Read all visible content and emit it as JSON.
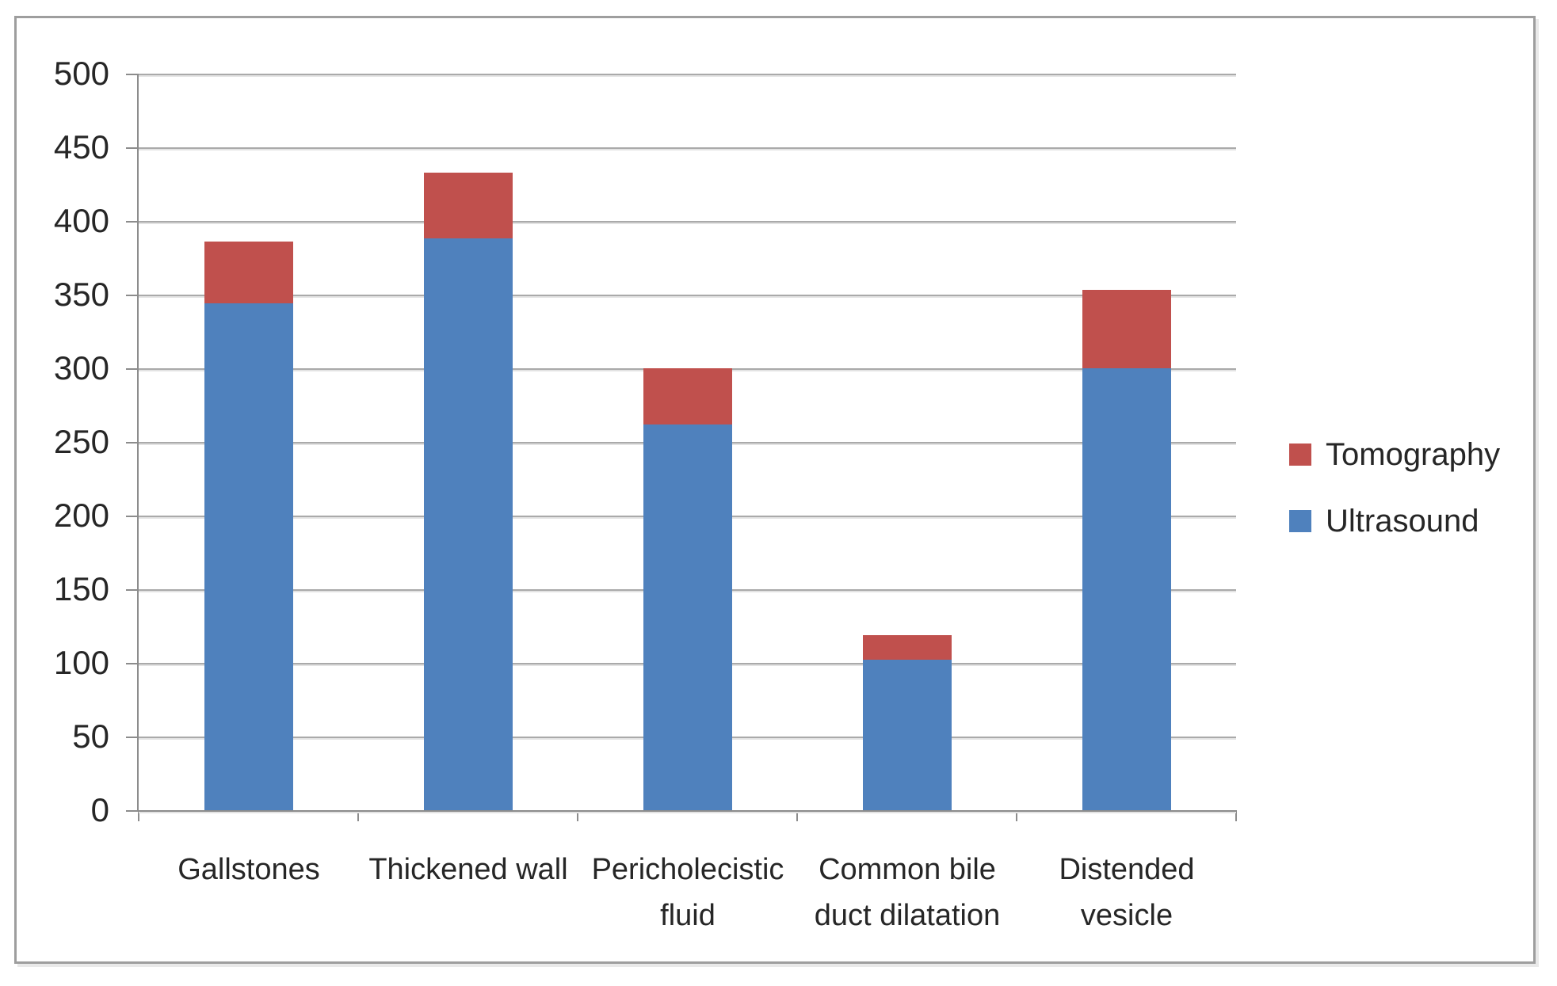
{
  "chart_data": {
    "type": "bar",
    "stacked": true,
    "title": "",
    "xlabel": "",
    "ylabel": "",
    "categories": [
      "Gallstones",
      "Thickened wall",
      "Pericholecistic fluid",
      "Common bile duct dilatation",
      "Distended vesicle"
    ],
    "series": [
      {
        "name": "Ultrasound",
        "color": "#4F81BD",
        "values": [
          344,
          388,
          262,
          102,
          300
        ]
      },
      {
        "name": "Tomography",
        "color": "#C0504D",
        "values": [
          42,
          45,
          38,
          17,
          53
        ]
      }
    ],
    "stack_totals": [
      386,
      433,
      300,
      119,
      353
    ],
    "ylim": [
      0,
      500
    ],
    "ytick_step": 50,
    "ytick_labels": [
      "0",
      "50",
      "100",
      "150",
      "200",
      "250",
      "300",
      "350",
      "400",
      "450",
      "500"
    ],
    "grid": true,
    "legend_position": "right",
    "legend": {
      "items": [
        {
          "label": "Tomography",
          "swatch": "#C0504D"
        },
        {
          "label": "Ultrasound",
          "swatch": "#4F81BD"
        }
      ]
    }
  },
  "colors": {
    "bar_blue": "#4F81BD",
    "bar_red": "#C0504D",
    "gridline": "#AAAAAA",
    "axis_line": "#8C8C8C",
    "frame_border": "#9E9E9E",
    "text": "#262626",
    "background": "#FFFFFF"
  }
}
